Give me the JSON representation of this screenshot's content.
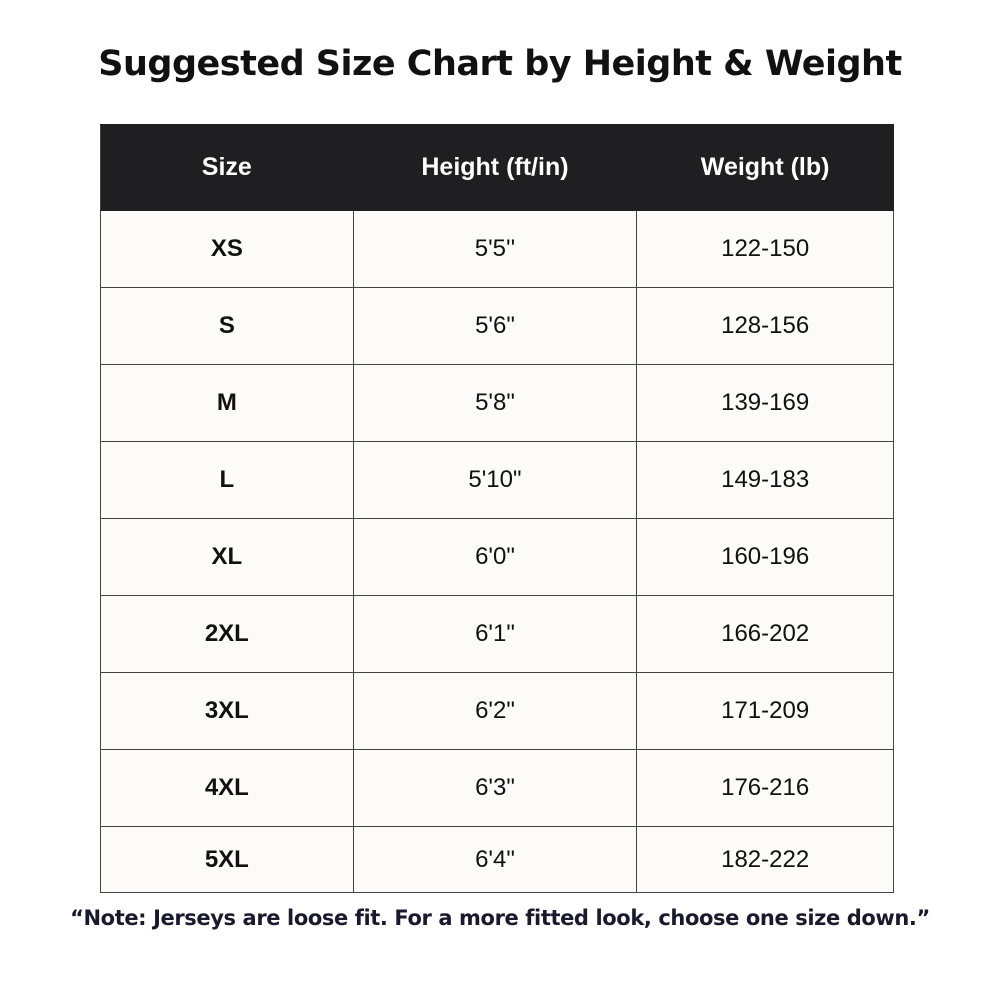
{
  "title": "Suggested Size Chart by Height & Weight",
  "table": {
    "headers": [
      "Size",
      "Height (ft/in)",
      "Weight (lb)"
    ],
    "rows": [
      [
        "XS",
        "5'5''",
        "122-150"
      ],
      [
        "S",
        "5'6\"",
        "128-156"
      ],
      [
        "M",
        "5'8\"",
        "139-169"
      ],
      [
        "L",
        "5'10\"",
        "149-183"
      ],
      [
        "XL",
        "6'0\"",
        "160-196"
      ],
      [
        "2XL",
        "6'1\"",
        "166-202"
      ],
      [
        "3XL",
        "6'2\"",
        "171-209"
      ],
      [
        "4XL",
        "6'3\"",
        "176-216"
      ],
      [
        "5XL",
        "6'4\"",
        "182-222"
      ]
    ]
  },
  "note": "“Note: Jerseys are loose fit. For a more fitted look, choose one size down.”",
  "colors": {
    "header_bg": "#1f1f22",
    "cell_bg": "#fcfbf9"
  }
}
